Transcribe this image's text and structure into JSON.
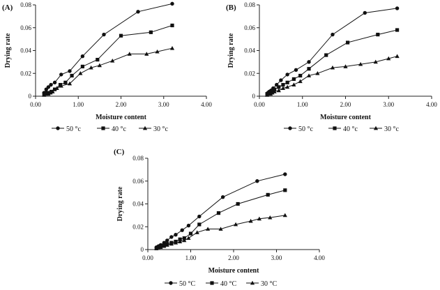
{
  "chart_data": [
    {
      "panel_label": "(A)",
      "type": "line",
      "xlabel": "Moisture content",
      "ylabel": "Drying rate",
      "xlim": [
        0,
        4
      ],
      "ylim": [
        0,
        0.08
      ],
      "xticks": [
        0,
        1,
        2,
        3,
        4
      ],
      "xtick_labels": [
        "0.00",
        "1.00",
        "2.00",
        "3.00",
        "4.00"
      ],
      "yticks": [
        0,
        0.02,
        0.04,
        0.06,
        0.08
      ],
      "ytick_labels": [
        "0",
        "0.02",
        "0.04",
        "0.06",
        "0.08"
      ],
      "grid": false,
      "legend": "bottom",
      "series": [
        {
          "name": "50 °c",
          "marker": "circle",
          "x": [
            0.2,
            0.25,
            0.3,
            0.36,
            0.45,
            0.6,
            0.8,
            1.1,
            1.6,
            2.4,
            3.2
          ],
          "y": [
            0.003,
            0.006,
            0.008,
            0.01,
            0.012,
            0.019,
            0.022,
            0.035,
            0.054,
            0.074,
            0.081
          ]
        },
        {
          "name": "40 °c",
          "marker": "square",
          "x": [
            0.2,
            0.25,
            0.3,
            0.37,
            0.45,
            0.58,
            0.7,
            0.85,
            1.1,
            1.45,
            2.0,
            2.7,
            3.2
          ],
          "y": [
            0.002,
            0.003,
            0.003,
            0.004,
            0.006,
            0.01,
            0.012,
            0.018,
            0.026,
            0.032,
            0.053,
            0.056,
            0.062
          ]
        },
        {
          "name": "30 °c",
          "marker": "triangle",
          "x": [
            0.2,
            0.25,
            0.3,
            0.35,
            0.4,
            0.5,
            0.6,
            0.8,
            1.05,
            1.3,
            1.5,
            1.8,
            2.2,
            2.6,
            2.85,
            3.2
          ],
          "y": [
            0.001,
            0.002,
            0.002,
            0.003,
            0.004,
            0.007,
            0.009,
            0.011,
            0.02,
            0.025,
            0.027,
            0.031,
            0.037,
            0.037,
            0.039,
            0.042
          ]
        }
      ]
    },
    {
      "panel_label": "(B)",
      "type": "line",
      "xlabel": "Moisture content",
      "ylabel": "Drying rate",
      "xlim": [
        0,
        4
      ],
      "ylim": [
        0,
        0.08
      ],
      "xticks": [
        0,
        1,
        2,
        3,
        4
      ],
      "xtick_labels": [
        "0.00",
        "1.00",
        "2.00",
        "3.00",
        "4.00"
      ],
      "yticks": [
        0,
        0.02,
        0.04,
        0.06,
        0.08
      ],
      "ytick_labels": [
        "0",
        "0.02",
        "0.04",
        "0.06",
        "0.08"
      ],
      "grid": false,
      "legend": "bottom",
      "series": [
        {
          "name": "50 °c",
          "marker": "circle",
          "x": [
            0.2,
            0.23,
            0.27,
            0.32,
            0.4,
            0.5,
            0.65,
            0.85,
            1.15,
            1.7,
            2.45,
            3.2
          ],
          "y": [
            0.003,
            0.004,
            0.005,
            0.007,
            0.01,
            0.014,
            0.019,
            0.023,
            0.03,
            0.054,
            0.073,
            0.077
          ]
        },
        {
          "name": "40 °c",
          "marker": "square",
          "x": [
            0.18,
            0.22,
            0.26,
            0.3,
            0.35,
            0.45,
            0.55,
            0.65,
            0.8,
            0.95,
            1.15,
            1.55,
            2.05,
            2.75,
            3.2
          ],
          "y": [
            0.002,
            0.003,
            0.004,
            0.005,
            0.006,
            0.008,
            0.01,
            0.012,
            0.015,
            0.018,
            0.024,
            0.036,
            0.047,
            0.054,
            0.058
          ]
        },
        {
          "name": "30 °c",
          "marker": "triangle",
          "x": [
            0.18,
            0.22,
            0.26,
            0.3,
            0.35,
            0.45,
            0.55,
            0.65,
            0.8,
            0.95,
            1.15,
            1.35,
            1.7,
            2.0,
            2.35,
            2.7,
            3.0,
            3.2
          ],
          "y": [
            0.001,
            0.002,
            0.002,
            0.003,
            0.004,
            0.005,
            0.007,
            0.008,
            0.01,
            0.013,
            0.018,
            0.02,
            0.025,
            0.026,
            0.028,
            0.03,
            0.033,
            0.035
          ]
        }
      ]
    },
    {
      "panel_label": "(C)",
      "type": "line",
      "xlabel": "Moisture content",
      "ylabel": "Drying rate",
      "xlim": [
        0,
        4
      ],
      "ylim": [
        0,
        0.08
      ],
      "xticks": [
        0,
        1,
        2,
        3,
        4
      ],
      "xtick_labels": [
        "0.00",
        "1.00",
        "2.00",
        "3.00",
        "4.00"
      ],
      "yticks": [
        0,
        0.02,
        0.04,
        0.06,
        0.08
      ],
      "ytick_labels": [
        "0",
        "0.02",
        "0.04",
        "0.06",
        "0.08"
      ],
      "grid": false,
      "legend": "bottom",
      "series": [
        {
          "name": "50 °C",
          "marker": "circle",
          "x": [
            0.2,
            0.25,
            0.3,
            0.38,
            0.45,
            0.55,
            0.65,
            0.8,
            0.95,
            1.2,
            1.75,
            2.55,
            3.2
          ],
          "y": [
            0.002,
            0.003,
            0.004,
            0.006,
            0.008,
            0.011,
            0.013,
            0.017,
            0.021,
            0.029,
            0.046,
            0.06,
            0.066
          ]
        },
        {
          "name": "40 °C",
          "marker": "square",
          "x": [
            0.2,
            0.25,
            0.3,
            0.38,
            0.45,
            0.55,
            0.65,
            0.75,
            0.85,
            1.0,
            1.2,
            1.65,
            2.1,
            2.8,
            3.2
          ],
          "y": [
            0.001,
            0.002,
            0.003,
            0.004,
            0.005,
            0.006,
            0.007,
            0.009,
            0.01,
            0.014,
            0.022,
            0.032,
            0.04,
            0.048,
            0.052
          ]
        },
        {
          "name": "30 °C",
          "marker": "triangle",
          "x": [
            0.2,
            0.25,
            0.3,
            0.38,
            0.45,
            0.55,
            0.65,
            0.75,
            0.85,
            0.95,
            1.15,
            1.4,
            1.7,
            2.05,
            2.4,
            2.6,
            2.85,
            3.2
          ],
          "y": [
            0.001,
            0.002,
            0.002,
            0.003,
            0.004,
            0.005,
            0.006,
            0.007,
            0.008,
            0.01,
            0.015,
            0.018,
            0.018,
            0.022,
            0.025,
            0.027,
            0.028,
            0.03
          ]
        }
      ]
    }
  ]
}
